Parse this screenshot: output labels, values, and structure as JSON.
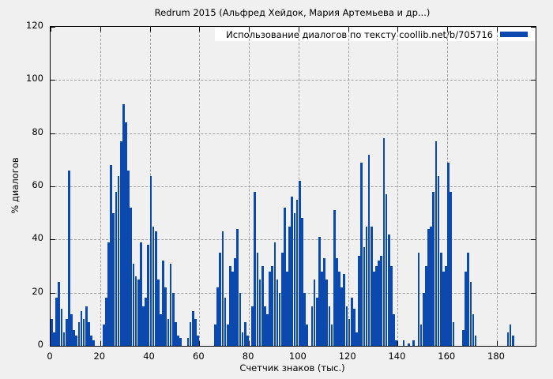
{
  "accent_color": "#0c49ae",
  "grid_color": "#9f9f9f",
  "background_color": "#f0f0f0",
  "chart_data": {
    "type": "bar",
    "title": "Redrum 2015 (Альфред Хейдок, Мария Артемьева и др...)",
    "legend": "Использование диалогов по тексту coollib.net/b/705716",
    "legend_position": "top-right",
    "xlabel": "Счетчик знаков (тыс.)",
    "ylabel": "% диалогов",
    "xlim": [
      0,
      195.6
    ],
    "ylim": [
      0,
      120
    ],
    "xticks": [
      0,
      20,
      40,
      60,
      80,
      100,
      120,
      140,
      160,
      180
    ],
    "yticks": [
      0,
      20,
      40,
      60,
      80,
      100,
      120
    ],
    "grid": "dashed",
    "bar_color": "#0c49ae",
    "x_start": 0,
    "x_step": 1,
    "values": [
      10,
      5,
      18,
      24,
      14,
      5,
      10,
      66,
      12,
      6,
      4,
      9,
      13,
      10,
      15,
      9,
      4,
      2,
      0,
      0,
      0,
      8,
      18,
      39,
      68,
      50,
      58,
      64,
      77,
      91,
      84,
      66,
      52,
      31,
      26,
      25,
      39,
      15,
      18,
      38,
      64,
      45,
      43,
      25,
      12,
      32,
      22,
      10,
      31,
      20,
      9,
      4,
      3,
      0,
      0,
      3,
      9,
      13,
      10,
      4,
      0,
      0,
      0,
      0,
      0,
      0,
      8,
      22,
      35,
      43,
      18,
      8,
      30,
      28,
      33,
      44,
      20,
      5,
      9,
      4,
      0,
      15,
      58,
      35,
      25,
      30,
      15,
      12,
      28,
      30,
      39,
      25,
      20,
      35,
      52,
      28,
      45,
      56,
      50,
      55,
      62,
      48,
      20,
      8,
      0,
      15,
      25,
      18,
      41,
      28,
      33,
      25,
      15,
      8,
      51,
      33,
      28,
      22,
      27,
      15,
      10,
      18,
      14,
      5,
      34,
      69,
      37,
      45,
      72,
      45,
      28,
      30,
      32,
      34,
      78,
      57,
      42,
      30,
      12,
      2,
      0,
      0,
      2,
      0,
      1,
      0,
      2,
      0,
      35,
      8,
      20,
      30,
      44,
      45,
      58,
      77,
      64,
      35,
      28,
      30,
      69,
      58,
      9,
      0,
      0,
      0,
      6,
      28,
      35,
      24,
      12,
      4,
      0,
      0,
      0,
      0,
      0,
      0,
      0,
      0,
      0,
      0,
      0,
      0,
      5,
      8,
      4,
      0,
      0,
      0
    ]
  }
}
